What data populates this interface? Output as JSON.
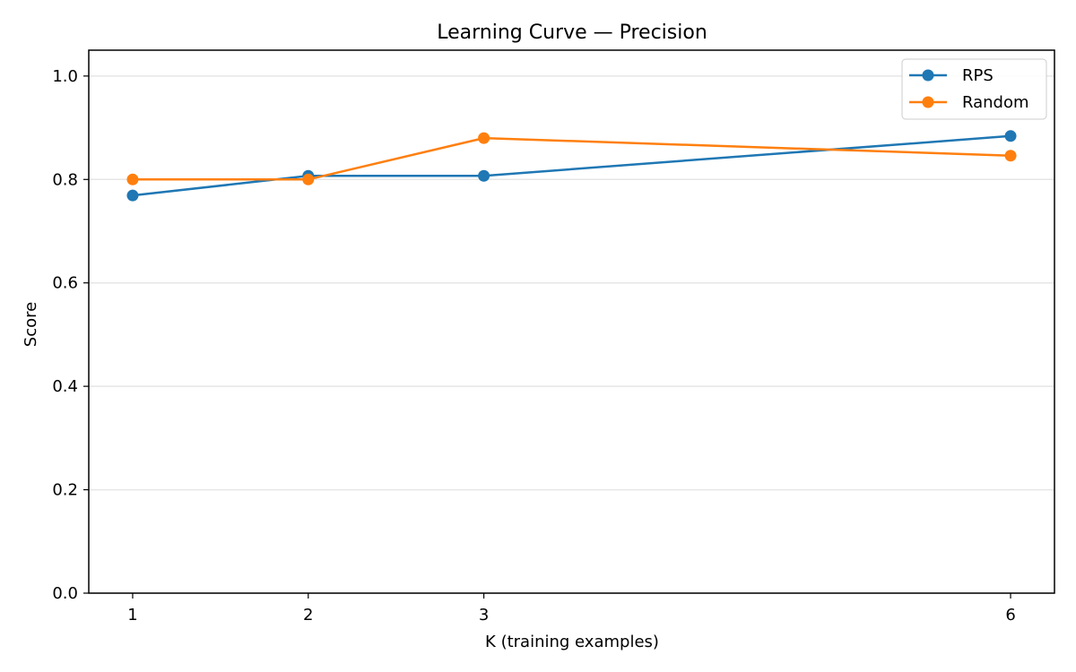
{
  "chart_data": {
    "type": "line",
    "title": "Learning Curve — Precision",
    "xlabel": "K (training examples)",
    "ylabel": "Score",
    "x": [
      1,
      2,
      3,
      6
    ],
    "x_ticks": [
      "1",
      "2",
      "3",
      "6"
    ],
    "xlim": [
      0.75,
      6.25
    ],
    "ylim": [
      0.0,
      1.05
    ],
    "y_ticks": [
      "0.0",
      "0.2",
      "0.4",
      "0.6",
      "0.8",
      "1.0"
    ],
    "y_tick_values": [
      0.0,
      0.2,
      0.4,
      0.6,
      0.8,
      1.0
    ],
    "grid": "horizontal",
    "legend_position": "top-right",
    "series": [
      {
        "name": "RPS",
        "color": "#1f77b4",
        "values": [
          0.769,
          0.807,
          0.807,
          0.884
        ]
      },
      {
        "name": "Random",
        "color": "#ff7f0e",
        "values": [
          0.8,
          0.8,
          0.88,
          0.846
        ]
      }
    ]
  }
}
